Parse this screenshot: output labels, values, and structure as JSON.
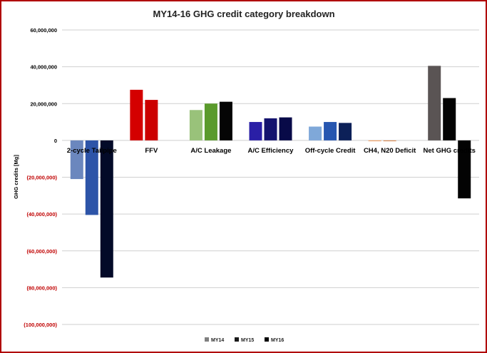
{
  "chart_data": {
    "type": "bar",
    "title": "MY14-16 GHG credit category breakdown",
    "ylabel": "GHG credits [Mg]",
    "xlabel": "",
    "ylim": [
      -100000000,
      60000000
    ],
    "yticks": [
      60000000,
      40000000,
      20000000,
      0,
      -20000000,
      -40000000,
      -60000000,
      -80000000,
      -100000000
    ],
    "ytick_labels": [
      "60,000,000",
      "40,000,000",
      "20,000,000",
      "0",
      "(20,000,000)",
      "(40,000,000)",
      "(60,000,000)",
      "(80,000,000)",
      "(100,000,000)"
    ],
    "negative_tick_color": "#c00000",
    "grid": true,
    "legend_position": "bottom",
    "categories": [
      "2-cycle Tailpipe",
      "FFV",
      "A/C Leakage",
      "A/C Efficiency",
      "Off-cycle Credit",
      "CH4, N20 Deficit",
      "Net GHG credits"
    ],
    "series": [
      {
        "name": "MY14",
        "values": [
          -21000000,
          27500000,
          16500000,
          10000000,
          7500000,
          -300000,
          40500000
        ]
      },
      {
        "name": "MY15",
        "values": [
          -40500000,
          22000000,
          20000000,
          12000000,
          10000000,
          -300000,
          23000000
        ]
      },
      {
        "name": "MY16",
        "values": [
          -74500000,
          null,
          21000000,
          12500000,
          9500000,
          null,
          -31500000
        ]
      }
    ],
    "bar_colors": [
      [
        "#6b87be",
        "#2d54a8",
        "#030a28"
      ],
      [
        "#d40000",
        "#cc0000",
        null
      ],
      [
        "#99c27a",
        "#5a9a2c",
        "#050505"
      ],
      [
        "#2a1fa6",
        "#14136e",
        "#080a48"
      ],
      [
        "#7fa8d9",
        "#2656b0",
        "#0c2058"
      ],
      [
        "#f2a36a",
        "#d98c56",
        null
      ],
      [
        "#5a5454",
        "#030303",
        "#030303"
      ]
    ],
    "legend_colors": [
      "#808080",
      "#1a1a1a",
      "#050505"
    ]
  }
}
